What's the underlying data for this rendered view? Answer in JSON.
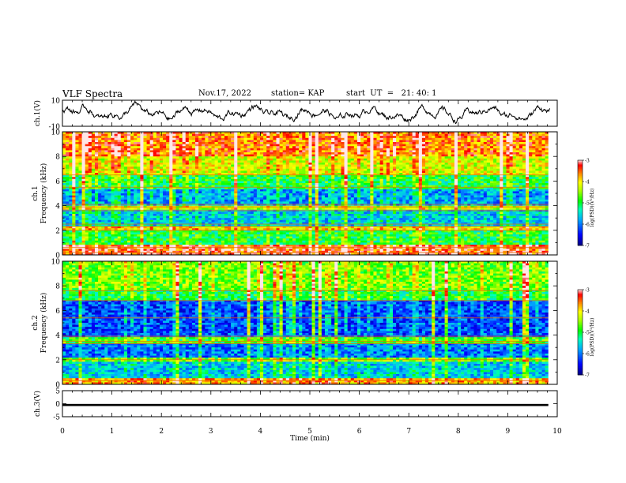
{
  "header": {
    "title": "VLF Spectra",
    "date": "Nov.17, 2022",
    "station": "station= KAP",
    "start": "start  UT  =   21: 40: 1"
  },
  "chart_data": [
    {
      "type": "line",
      "ylabel": "ch.1(V)",
      "ylim": [
        -10,
        10
      ],
      "yticks": [
        "10",
        "-10"
      ],
      "xlim": [
        0,
        10
      ],
      "description_of_trace": "noisy waveform fluctuating mostly between about -8 and +8 V"
    },
    {
      "type": "heatmap",
      "ylabel_top": "ch.1",
      "ylabel": "Frequency (kHz)",
      "ylim": [
        0,
        10
      ],
      "yticks": [
        "0",
        "2",
        "4",
        "6",
        "8",
        "10"
      ],
      "xlim": [
        0,
        10
      ],
      "colorbar": {
        "label": "log(PSD)(V²/Hz)",
        "range": [
          -7,
          -3
        ],
        "ticks": [
          "-3",
          "-4",
          "-5",
          "-6",
          "-7"
        ],
        "colors": [
          "#000080",
          "#0000ff",
          "#00a0ff",
          "#00ffa0",
          "#00ff00",
          "#c0ff00",
          "#ffff00",
          "#ff8000",
          "#ff0000",
          "#ffffff"
        ]
      },
      "bands_khz": [
        {
          "from": 0,
          "to": 0.8,
          "level": -3.4
        },
        {
          "from": 0.8,
          "to": 2,
          "level": -5.0
        },
        {
          "from": 2,
          "to": 2.4,
          "level": -4.0
        },
        {
          "from": 2.4,
          "to": 3.6,
          "level": -5.6
        },
        {
          "from": 3.6,
          "to": 4.0,
          "level": -4.3
        },
        {
          "from": 4.0,
          "to": 5.4,
          "level": -5.8
        },
        {
          "from": 5.4,
          "to": 6.5,
          "level": -5.0
        },
        {
          "from": 6.5,
          "to": 8.0,
          "level": -4.2
        },
        {
          "from": 8.0,
          "to": 10,
          "level": -3.6
        }
      ]
    },
    {
      "type": "heatmap",
      "ylabel_top": "ch.2",
      "ylabel": "Frequency (kHz)",
      "ylim": [
        0,
        10
      ],
      "yticks": [
        "0",
        "2",
        "4",
        "6",
        "8",
        "10"
      ],
      "xlim": [
        0,
        10
      ],
      "colorbar": {
        "label": "log(PSD)(V²/Hz)",
        "range": [
          -7,
          -3
        ],
        "ticks": [
          "-3",
          "-4",
          "-5",
          "-6",
          "-7"
        ]
      },
      "bands_khz": [
        {
          "from": 0,
          "to": 0.5,
          "level": -3.8
        },
        {
          "from": 0.5,
          "to": 1.8,
          "level": -5.6
        },
        {
          "from": 1.8,
          "to": 2.2,
          "level": -4.6
        },
        {
          "from": 2.2,
          "to": 3.4,
          "level": -6.0
        },
        {
          "from": 3.4,
          "to": 3.9,
          "level": -4.8
        },
        {
          "from": 3.9,
          "to": 6.8,
          "level": -6.2
        },
        {
          "from": 6.8,
          "to": 7.6,
          "level": -5.0
        },
        {
          "from": 7.6,
          "to": 10,
          "level": -4.6
        }
      ]
    },
    {
      "type": "line",
      "ylabel": "ch.3(V)",
      "ylim": [
        -5,
        5
      ],
      "yticks": [
        "5",
        "0",
        "-5"
      ],
      "xlim": [
        0,
        10
      ],
      "xticks": [
        "0",
        "1",
        "2",
        "3",
        "4",
        "5",
        "6",
        "7",
        "8",
        "9",
        "10"
      ],
      "xlabel": "Time (min)",
      "level_v": [
        -0.9,
        -0.1
      ]
    }
  ]
}
